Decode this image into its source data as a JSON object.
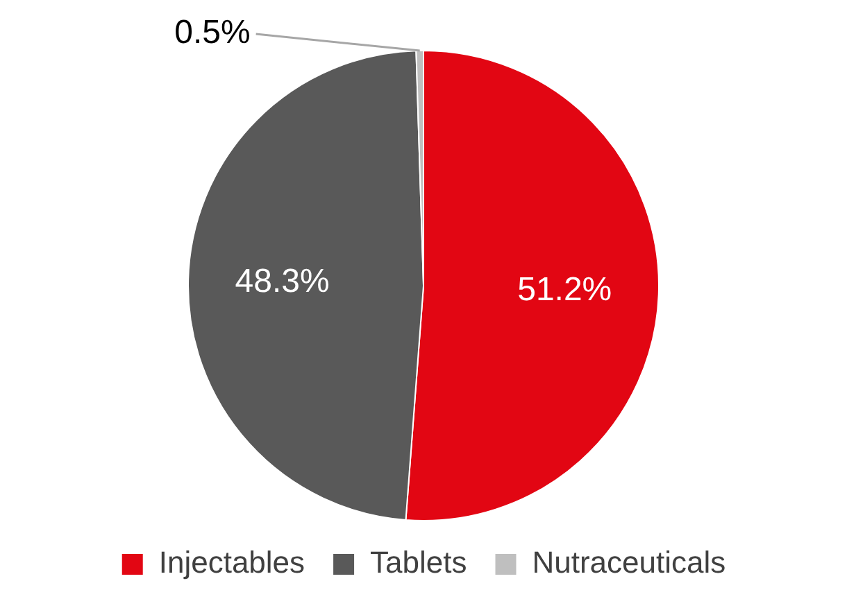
{
  "chart_data": {
    "type": "pie",
    "categories": [
      "Injectables",
      "Tablets",
      "Nutraceuticals"
    ],
    "values": [
      51.2,
      48.3,
      0.5
    ],
    "colors": [
      "#e20613",
      "#595959",
      "#bfbfbf"
    ],
    "value_labels": [
      "51.2%",
      "48.3%",
      "0.5%"
    ],
    "legend": "bottom"
  }
}
